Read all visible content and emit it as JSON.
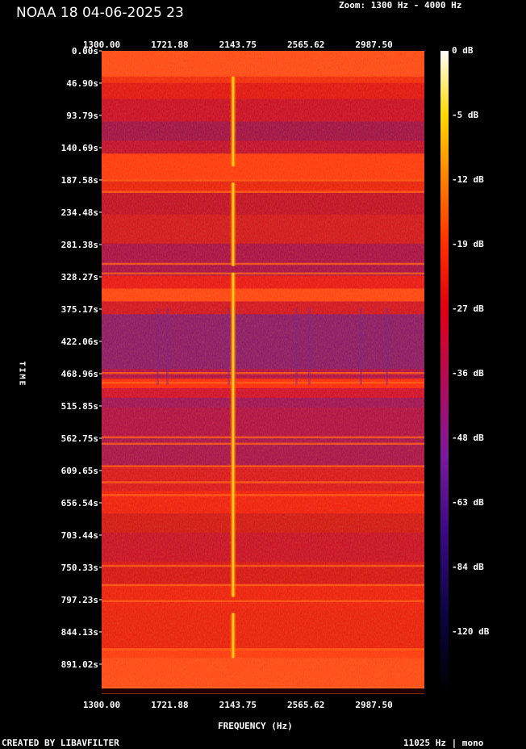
{
  "chart_data": {
    "type": "heatmap",
    "title": "NOAA 18 04-06-2025 23",
    "zoom_text": "Zoom: 1300 Hz - 4000 Hz",
    "xlabel": "FREQUENCY (Hz)",
    "ylabel": "TIME",
    "x_ticks": [
      "1300.00",
      "1721.88",
      "2143.75",
      "2565.62",
      "2987.50"
    ],
    "y_ticks": [
      "0.00s",
      "46.90s",
      "93.79s",
      "140.69s",
      "187.58s",
      "234.48s",
      "281.38s",
      "328.27s",
      "375.17s",
      "422.06s",
      "468.96s",
      "515.85s",
      "562.75s",
      "609.65s",
      "656.54s",
      "703.44s",
      "750.33s",
      "797.23s",
      "844.13s",
      "891.02s"
    ],
    "colorbar_ticks": [
      "0 dB",
      "-5 dB",
      "-12 dB",
      "-19 dB",
      "-27 dB",
      "-36 dB",
      "-48 dB",
      "-63 dB",
      "-84 dB",
      "-120 dB"
    ],
    "xlim": [
      1300,
      4000
    ],
    "ylim": [
      0,
      938
    ],
    "tone_frequency_hz": 2400,
    "colormap": [
      "#000000",
      "#1a0560",
      "#7a1a9a",
      "#d40a20",
      "#ff3300",
      "#ff8800",
      "#ffe000",
      "#ffffff"
    ]
  },
  "footer": {
    "left": "CREATED BY LIBAVFILTER",
    "right": "11025 Hz | mono"
  }
}
